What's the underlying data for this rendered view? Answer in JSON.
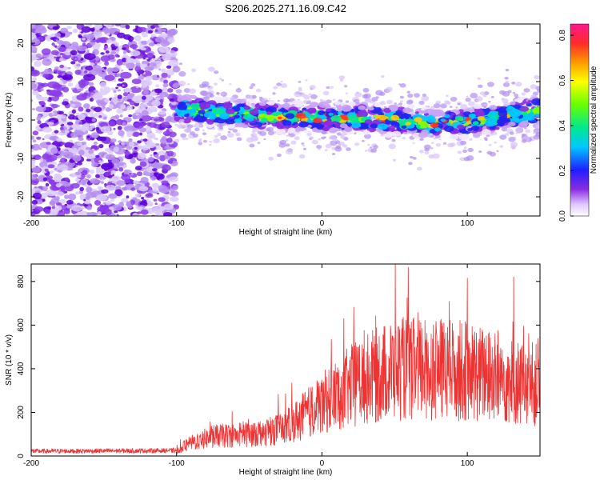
{
  "chart_data": [
    {
      "type": "heatmap",
      "title": "S206.2025.271.16.09.C42",
      "xlabel": "Height of straight line (km)",
      "ylabel": "Frequency (Hz)",
      "xlim": [
        -200,
        150
      ],
      "ylim": [
        -25,
        25
      ],
      "xticks": [
        -200,
        -100,
        0,
        100
      ],
      "yticks": [
        -20,
        -10,
        0,
        10,
        20
      ],
      "colorbar": {
        "label": "Normalized spectral amplitude",
        "ticks": [
          "0.0",
          "0.2",
          "0.4",
          "0.6",
          "0.8"
        ],
        "range": [
          0,
          0.85
        ]
      },
      "ridge": {
        "x": [
          -100,
          -75,
          -50,
          -25,
          0,
          25,
          50,
          75,
          100,
          125,
          150
        ],
        "frequency_hz": [
          3.0,
          2.0,
          1.5,
          0.5,
          0.5,
          0.5,
          0.0,
          -1.0,
          -0.5,
          1.0,
          2.5
        ]
      },
      "noise_region_x": [
        -200,
        -100
      ]
    },
    {
      "type": "line",
      "title": "",
      "xlabel": "Height of straight line (km)",
      "ylabel": "SNR (10 * v/v)",
      "xlim": [
        -200,
        150
      ],
      "ylim": [
        0,
        880
      ],
      "xticks": [
        -200,
        -100,
        0,
        100
      ],
      "yticks": [
        0,
        200,
        400,
        600,
        800
      ],
      "series": [
        {
          "name": "SNR",
          "color": "#ee3333",
          "envelope_x": [
            -200,
            -100,
            -90,
            -75,
            -50,
            -25,
            0,
            25,
            50,
            75,
            100,
            125,
            150
          ],
          "envelope_mean": [
            22,
            25,
            60,
            90,
            100,
            130,
            240,
            340,
            400,
            400,
            390,
            350,
            320
          ]
        }
      ]
    }
  ]
}
